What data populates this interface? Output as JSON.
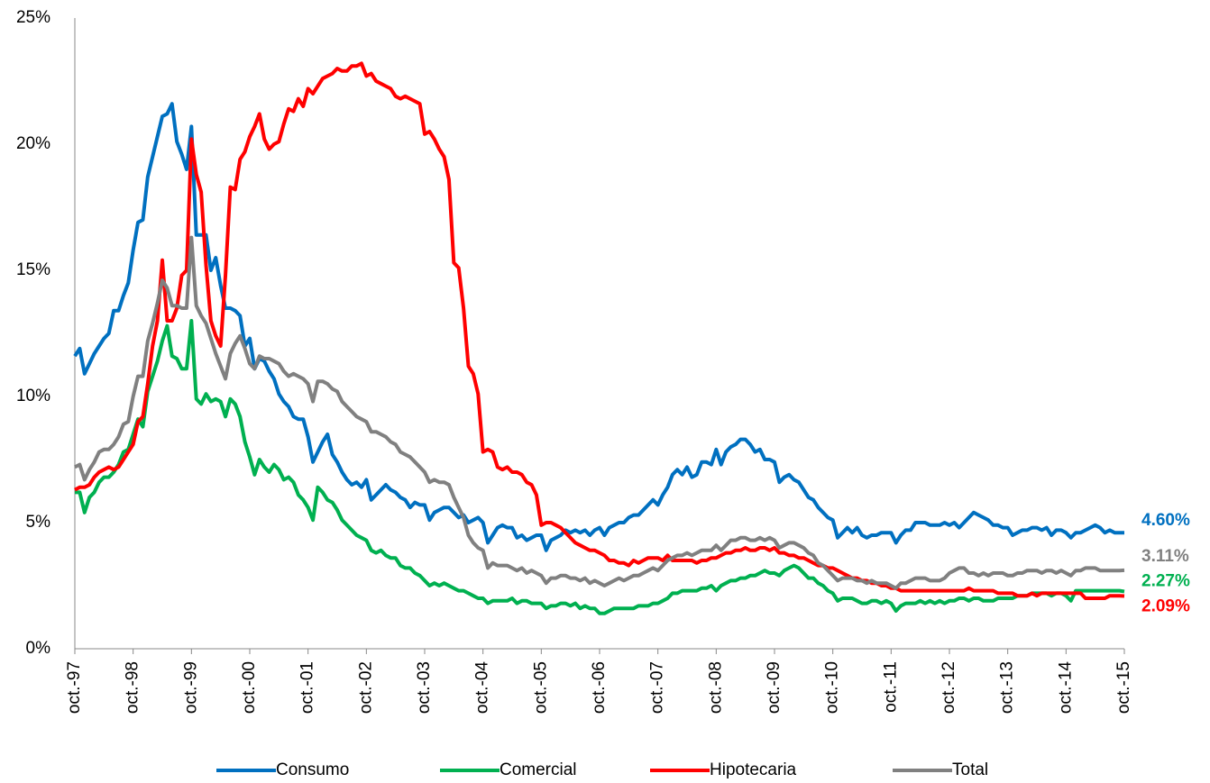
{
  "chart_data": {
    "type": "line",
    "categories": [
      "oct.-97",
      null,
      null,
      null,
      null,
      null,
      null,
      null,
      null,
      null,
      null,
      null,
      "oct.-98",
      null,
      null,
      null,
      null,
      null,
      null,
      null,
      null,
      null,
      null,
      null,
      "oct.-99",
      null,
      null,
      null,
      null,
      null,
      null,
      null,
      null,
      null,
      null,
      null,
      "oct.-00",
      null,
      null,
      null,
      null,
      null,
      null,
      null,
      null,
      null,
      null,
      null,
      "oct.-01",
      null,
      null,
      null,
      null,
      null,
      null,
      null,
      null,
      null,
      null,
      null,
      "oct.-02",
      null,
      null,
      null,
      null,
      null,
      null,
      null,
      null,
      null,
      null,
      null,
      "oct.-03",
      null,
      null,
      null,
      null,
      null,
      null,
      null,
      null,
      null,
      null,
      null,
      "oct.-04",
      null,
      null,
      null,
      null,
      null,
      null,
      null,
      null,
      null,
      null,
      null,
      "oct.-05",
      null,
      null,
      null,
      null,
      null,
      null,
      null,
      null,
      null,
      null,
      null,
      "oct.-06",
      null,
      null,
      null,
      null,
      null,
      null,
      null,
      null,
      null,
      null,
      null,
      "oct.-07",
      null,
      null,
      null,
      null,
      null,
      null,
      null,
      null,
      null,
      null,
      null,
      "oct.-08",
      null,
      null,
      null,
      null,
      null,
      null,
      null,
      null,
      null,
      null,
      null,
      "oct.-09",
      null,
      null,
      null,
      null,
      null,
      null,
      null,
      null,
      null,
      null,
      null,
      "oct.-10",
      null,
      null,
      null,
      null,
      null,
      null,
      null,
      null,
      null,
      null,
      null,
      "oct.-11",
      null,
      null,
      null,
      null,
      null,
      null,
      null,
      null,
      null,
      null,
      null,
      "oct.-12",
      null,
      null,
      null,
      null,
      null,
      null,
      null,
      null,
      null,
      null,
      null,
      "oct.-13",
      null,
      null,
      null,
      null,
      null,
      null,
      null,
      null,
      null,
      null,
      null,
      "oct.-14",
      null,
      null,
      null,
      null,
      null,
      null,
      null,
      null,
      null,
      null,
      null,
      "oct.-15"
    ],
    "series": [
      {
        "name": "Consumo",
        "color": "#0070c0",
        "end_label": "4.60%",
        "values": [
          11.6,
          11.9,
          10.9,
          11.3,
          11.7,
          12.0,
          12.3,
          12.5,
          13.4,
          13.4,
          14.0,
          14.5,
          15.8,
          16.9,
          17.0,
          18.7,
          19.5,
          20.3,
          21.1,
          21.2,
          21.6,
          20.1,
          19.6,
          19.0,
          20.7,
          16.4,
          16.4,
          16.4,
          15.0,
          15.5,
          14.4,
          13.5,
          13.5,
          13.4,
          13.2,
          12.0,
          12.3,
          11.1,
          11.5,
          11.4,
          11.0,
          10.7,
          10.1,
          9.8,
          9.6,
          9.2,
          9.1,
          9.1,
          8.4,
          7.4,
          7.8,
          8.2,
          8.5,
          7.7,
          7.4,
          7.0,
          6.7,
          6.5,
          6.6,
          6.4,
          6.7,
          5.9,
          6.1,
          6.3,
          6.5,
          6.3,
          6.2,
          6.0,
          5.9,
          5.6,
          5.8,
          5.7,
          5.7,
          5.1,
          5.4,
          5.5,
          5.6,
          5.6,
          5.4,
          5.2,
          5.3,
          5.0,
          5.1,
          5.2,
          5.0,
          4.2,
          4.5,
          4.8,
          4.9,
          4.8,
          4.8,
          4.4,
          4.5,
          4.3,
          4.4,
          4.5,
          4.5,
          3.9,
          4.3,
          4.4,
          4.5,
          4.7,
          4.6,
          4.7,
          4.6,
          4.7,
          4.5,
          4.7,
          4.8,
          4.5,
          4.8,
          4.9,
          5.0,
          5.0,
          5.2,
          5.3,
          5.3,
          5.5,
          5.7,
          5.9,
          5.7,
          6.1,
          6.4,
          6.9,
          7.1,
          6.9,
          7.2,
          6.8,
          6.9,
          7.4,
          7.4,
          7.3,
          7.9,
          7.3,
          7.8,
          8.0,
          8.1,
          8.3,
          8.3,
          8.1,
          7.8,
          7.9,
          7.5,
          7.5,
          7.4,
          6.6,
          6.8,
          6.9,
          6.7,
          6.6,
          6.3,
          6.0,
          5.9,
          5.6,
          5.4,
          5.2,
          5.1,
          4.4,
          4.6,
          4.8,
          4.6,
          4.8,
          4.5,
          4.4,
          4.5,
          4.5,
          4.6,
          4.6,
          4.6,
          4.2,
          4.5,
          4.7,
          4.7,
          5.0,
          5.0,
          5.0,
          4.9,
          4.9,
          4.9,
          5.0,
          4.9,
          5.0,
          4.8,
          5.0,
          5.2,
          5.4,
          5.3,
          5.2,
          5.1,
          4.9,
          4.9,
          4.8,
          4.8,
          4.5,
          4.6,
          4.7,
          4.7,
          4.8,
          4.8,
          4.7,
          4.8,
          4.5,
          4.7,
          4.7,
          4.6,
          4.4,
          4.6,
          4.6,
          4.7,
          4.8,
          4.9,
          4.8,
          4.6,
          4.7,
          4.6,
          4.6,
          4.6
        ]
      },
      {
        "name": "Comercial",
        "color": "#00b050",
        "end_label": "2.27%",
        "values": [
          6.2,
          6.2,
          5.4,
          6.0,
          6.2,
          6.6,
          6.8,
          6.8,
          7.0,
          7.3,
          7.8,
          7.9,
          8.5,
          9.1,
          8.8,
          10.2,
          10.8,
          11.4,
          12.2,
          12.8,
          11.6,
          11.5,
          11.1,
          11.1,
          13.0,
          9.9,
          9.7,
          10.1,
          9.8,
          9.9,
          9.8,
          9.2,
          9.9,
          9.7,
          9.2,
          8.2,
          7.6,
          6.9,
          7.5,
          7.2,
          7.0,
          7.3,
          7.1,
          6.7,
          6.8,
          6.6,
          6.1,
          5.9,
          5.6,
          5.1,
          6.4,
          6.2,
          5.9,
          5.8,
          5.5,
          5.1,
          4.9,
          4.7,
          4.5,
          4.4,
          4.3,
          3.9,
          3.8,
          3.9,
          3.7,
          3.6,
          3.6,
          3.3,
          3.2,
          3.2,
          3.0,
          2.9,
          2.7,
          2.5,
          2.6,
          2.5,
          2.6,
          2.5,
          2.4,
          2.3,
          2.3,
          2.2,
          2.1,
          2.0,
          2.0,
          1.8,
          1.9,
          1.9,
          1.9,
          1.9,
          2.0,
          1.8,
          1.9,
          1.9,
          1.8,
          1.8,
          1.8,
          1.6,
          1.7,
          1.7,
          1.8,
          1.8,
          1.7,
          1.8,
          1.6,
          1.7,
          1.6,
          1.6,
          1.4,
          1.4,
          1.5,
          1.6,
          1.6,
          1.6,
          1.6,
          1.6,
          1.7,
          1.7,
          1.7,
          1.8,
          1.8,
          1.9,
          2.0,
          2.2,
          2.2,
          2.3,
          2.3,
          2.3,
          2.3,
          2.4,
          2.4,
          2.5,
          2.3,
          2.5,
          2.6,
          2.7,
          2.7,
          2.8,
          2.8,
          2.9,
          2.9,
          3.0,
          3.1,
          3.0,
          3.0,
          2.9,
          3.1,
          3.2,
          3.3,
          3.2,
          3.0,
          2.8,
          2.8,
          2.6,
          2.5,
          2.3,
          2.2,
          1.9,
          2.0,
          2.0,
          2.0,
          1.9,
          1.8,
          1.8,
          1.9,
          1.9,
          1.8,
          1.9,
          1.8,
          1.5,
          1.7,
          1.8,
          1.8,
          1.8,
          1.9,
          1.8,
          1.9,
          1.8,
          1.9,
          1.8,
          1.9,
          1.9,
          2.0,
          2.0,
          1.9,
          2.0,
          2.0,
          1.9,
          1.9,
          1.9,
          2.0,
          2.0,
          2.0,
          2.0,
          2.1,
          2.1,
          2.1,
          2.2,
          2.2,
          2.2,
          2.2,
          2.1,
          2.2,
          2.2,
          2.1,
          1.9,
          2.3,
          2.3,
          2.3,
          2.3,
          2.3,
          2.3,
          2.3,
          2.3,
          2.3,
          2.3,
          2.27
        ]
      },
      {
        "name": "Hipotecaria",
        "color": "#ff0000",
        "end_label": "2.09%",
        "values": [
          6.3,
          6.4,
          6.4,
          6.5,
          6.8,
          7.0,
          7.1,
          7.2,
          7.1,
          7.2,
          7.5,
          7.8,
          8.1,
          9.0,
          9.2,
          10.5,
          12.0,
          13.0,
          15.4,
          13.0,
          13.0,
          13.5,
          14.8,
          15.0,
          20.2,
          18.8,
          18.1,
          15.2,
          13.0,
          12.4,
          12.0,
          14.8,
          18.3,
          18.2,
          19.4,
          19.7,
          20.3,
          20.7,
          21.2,
          20.2,
          19.8,
          20.0,
          20.1,
          20.8,
          21.4,
          21.3,
          21.8,
          21.5,
          22.2,
          22.0,
          22.3,
          22.6,
          22.7,
          22.8,
          23.0,
          22.9,
          22.9,
          23.1,
          23.1,
          23.2,
          22.7,
          22.8,
          22.5,
          22.4,
          22.3,
          22.2,
          21.9,
          21.8,
          21.9,
          21.8,
          21.7,
          21.6,
          20.4,
          20.5,
          20.2,
          19.8,
          19.5,
          18.6,
          15.3,
          15.1,
          13.5,
          11.2,
          10.9,
          10.1,
          7.8,
          7.9,
          7.8,
          7.2,
          7.1,
          7.2,
          7.0,
          7.0,
          6.9,
          6.6,
          6.5,
          6.1,
          4.9,
          5.0,
          5.0,
          4.9,
          4.8,
          4.6,
          4.4,
          4.2,
          4.1,
          4.0,
          3.9,
          3.9,
          3.8,
          3.7,
          3.5,
          3.5,
          3.4,
          3.4,
          3.3,
          3.5,
          3.4,
          3.5,
          3.6,
          3.6,
          3.6,
          3.5,
          3.7,
          3.5,
          3.5,
          3.5,
          3.5,
          3.5,
          3.4,
          3.5,
          3.5,
          3.6,
          3.6,
          3.7,
          3.8,
          3.8,
          3.9,
          3.9,
          4.0,
          3.9,
          3.9,
          4.0,
          4.0,
          3.9,
          4.0,
          3.8,
          3.8,
          3.7,
          3.7,
          3.6,
          3.6,
          3.5,
          3.4,
          3.3,
          3.3,
          3.2,
          3.2,
          3.1,
          3.0,
          2.9,
          2.8,
          2.8,
          2.7,
          2.7,
          2.6,
          2.6,
          2.5,
          2.5,
          2.4,
          2.4,
          2.3,
          2.3,
          2.3,
          2.3,
          2.3,
          2.3,
          2.3,
          2.3,
          2.3,
          2.3,
          2.3,
          2.3,
          2.3,
          2.3,
          2.4,
          2.3,
          2.3,
          2.3,
          2.3,
          2.3,
          2.2,
          2.2,
          2.2,
          2.2,
          2.1,
          2.1,
          2.1,
          2.2,
          2.1,
          2.2,
          2.2,
          2.2,
          2.2,
          2.2,
          2.2,
          2.2,
          2.2,
          2.2,
          2.0,
          2.0,
          2.0,
          2.0,
          2.0,
          2.1,
          2.1,
          2.1,
          2.09
        ]
      },
      {
        "name": "Total",
        "color": "#808080",
        "end_label": "3.11%",
        "values": [
          7.2,
          7.3,
          6.7,
          7.1,
          7.4,
          7.8,
          7.9,
          7.9,
          8.1,
          8.4,
          8.9,
          9.0,
          10.0,
          10.8,
          10.8,
          12.2,
          12.9,
          13.7,
          14.6,
          14.3,
          13.6,
          13.6,
          13.5,
          13.5,
          16.3,
          13.6,
          13.2,
          12.9,
          12.3,
          11.7,
          11.2,
          10.7,
          11.7,
          12.1,
          12.4,
          11.9,
          11.3,
          11.1,
          11.6,
          11.5,
          11.5,
          11.4,
          11.3,
          11.0,
          10.8,
          10.9,
          10.8,
          10.7,
          10.5,
          9.8,
          10.6,
          10.6,
          10.5,
          10.3,
          10.2,
          9.8,
          9.6,
          9.4,
          9.2,
          9.1,
          9.0,
          8.6,
          8.6,
          8.5,
          8.4,
          8.2,
          8.1,
          7.8,
          7.7,
          7.6,
          7.4,
          7.2,
          7.0,
          6.6,
          6.7,
          6.6,
          6.6,
          6.5,
          6.0,
          5.6,
          5.2,
          4.5,
          4.2,
          4.0,
          3.9,
          3.2,
          3.4,
          3.3,
          3.3,
          3.3,
          3.2,
          3.1,
          3.2,
          3.0,
          3.1,
          3.0,
          2.9,
          2.6,
          2.8,
          2.8,
          2.9,
          2.9,
          2.8,
          2.8,
          2.7,
          2.8,
          2.6,
          2.7,
          2.6,
          2.5,
          2.6,
          2.7,
          2.8,
          2.7,
          2.8,
          2.9,
          2.9,
          3.0,
          3.1,
          3.2,
          3.1,
          3.3,
          3.5,
          3.6,
          3.7,
          3.7,
          3.8,
          3.7,
          3.8,
          3.9,
          3.9,
          3.9,
          4.1,
          3.9,
          4.1,
          4.3,
          4.3,
          4.4,
          4.4,
          4.3,
          4.3,
          4.4,
          4.3,
          4.4,
          4.3,
          4.0,
          4.1,
          4.2,
          4.2,
          4.1,
          4.0,
          3.8,
          3.7,
          3.4,
          3.3,
          3.1,
          2.9,
          2.7,
          2.8,
          2.8,
          2.8,
          2.7,
          2.7,
          2.6,
          2.7,
          2.6,
          2.6,
          2.6,
          2.5,
          2.4,
          2.6,
          2.6,
          2.7,
          2.8,
          2.8,
          2.8,
          2.7,
          2.7,
          2.7,
          2.8,
          3.0,
          3.1,
          3.2,
          3.2,
          3.0,
          3.0,
          2.9,
          3.0,
          2.9,
          3.0,
          3.0,
          3.0,
          2.9,
          2.9,
          3.0,
          3.0,
          3.1,
          3.1,
          3.1,
          3.0,
          3.1,
          3.1,
          3.0,
          3.1,
          3.0,
          2.9,
          3.1,
          3.1,
          3.2,
          3.2,
          3.2,
          3.1,
          3.1,
          3.1,
          3.1,
          3.1,
          3.11
        ]
      }
    ],
    "ylim": [
      0,
      25
    ],
    "yticks": [
      {
        "value": 0,
        "label": "0%"
      },
      {
        "value": 5,
        "label": "5%"
      },
      {
        "value": 10,
        "label": "10%"
      },
      {
        "value": 15,
        "label": "15%"
      },
      {
        "value": 20,
        "label": "20%"
      },
      {
        "value": 25,
        "label": "25%"
      }
    ],
    "grid": false,
    "legend": "bottom"
  }
}
